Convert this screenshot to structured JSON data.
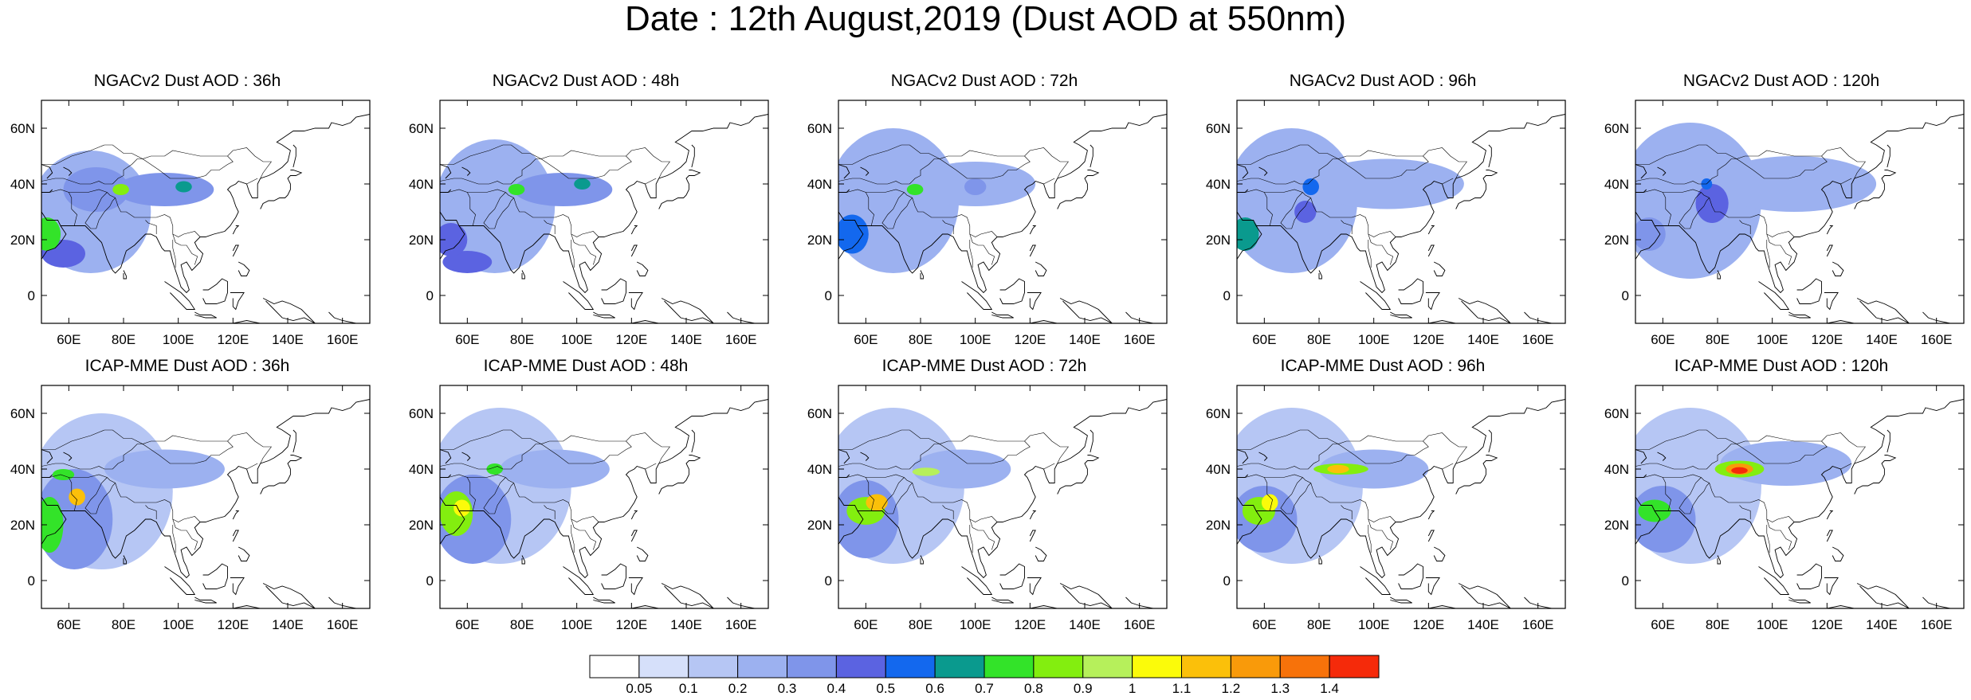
{
  "title": "Date : 12th August,2019 (Dust AOD at 550nm)",
  "lon_ticks": [
    "60E",
    "80E",
    "100E",
    "120E",
    "140E",
    "160E"
  ],
  "lat_ticks": [
    "60N",
    "40N",
    "20N",
    "0"
  ],
  "lon_tick_values": [
    60,
    80,
    100,
    120,
    140,
    160
  ],
  "lat_tick_values": [
    60,
    40,
    20,
    0
  ],
  "extent": {
    "lon": [
      50,
      170
    ],
    "lat": [
      -10,
      70
    ]
  },
  "panels": [
    {
      "title": "NGACv2 Dust AOD : 36h",
      "blobs": [
        {
          "lon": 68,
          "lat": 30,
          "rlon": 22,
          "rlat": 22,
          "aod": 0.2
        },
        {
          "lon": 95,
          "lat": 38,
          "rlon": 18,
          "rlat": 6,
          "aod": 0.3
        },
        {
          "lon": 70,
          "lat": 38,
          "rlon": 12,
          "rlat": 8,
          "aod": 0.35
        },
        {
          "lon": 79,
          "lat": 38,
          "rlon": 3,
          "rlat": 2,
          "aod": 0.8
        },
        {
          "lon": 102,
          "lat": 39,
          "rlon": 3,
          "rlat": 2,
          "aod": 0.6
        },
        {
          "lon": 52,
          "lat": 22,
          "rlon": 5,
          "rlat": 6,
          "aod": 0.75
        },
        {
          "lon": 58,
          "lat": 15,
          "rlon": 8,
          "rlat": 5,
          "aod": 0.45
        }
      ]
    },
    {
      "title": "NGACv2 Dust AOD : 48h",
      "blobs": [
        {
          "lon": 70,
          "lat": 32,
          "rlon": 22,
          "rlat": 24,
          "aod": 0.2
        },
        {
          "lon": 95,
          "lat": 38,
          "rlon": 18,
          "rlat": 6,
          "aod": 0.3
        },
        {
          "lon": 78,
          "lat": 38,
          "rlon": 3,
          "rlat": 2,
          "aod": 0.7
        },
        {
          "lon": 102,
          "lat": 40,
          "rlon": 3,
          "rlat": 2,
          "aod": 0.6
        },
        {
          "lon": 54,
          "lat": 20,
          "rlon": 6,
          "rlat": 6,
          "aod": 0.45
        },
        {
          "lon": 60,
          "lat": 12,
          "rlon": 9,
          "rlat": 4,
          "aod": 0.4
        }
      ]
    },
    {
      "title": "NGACv2 Dust AOD : 72h",
      "blobs": [
        {
          "lon": 70,
          "lat": 34,
          "rlon": 24,
          "rlat": 26,
          "aod": 0.2
        },
        {
          "lon": 100,
          "lat": 40,
          "rlon": 22,
          "rlat": 8,
          "aod": 0.25
        },
        {
          "lon": 78,
          "lat": 38,
          "rlon": 3,
          "rlat": 2,
          "aod": 0.7
        },
        {
          "lon": 55,
          "lat": 22,
          "rlon": 6,
          "rlat": 7,
          "aod": 0.5
        },
        {
          "lon": 100,
          "lat": 39,
          "rlon": 4,
          "rlat": 3,
          "aod": 0.35
        }
      ]
    },
    {
      "title": "NGACv2 Dust AOD : 96h",
      "blobs": [
        {
          "lon": 70,
          "lat": 34,
          "rlon": 24,
          "rlat": 26,
          "aod": 0.2
        },
        {
          "lon": 105,
          "lat": 40,
          "rlon": 28,
          "rlat": 9,
          "aod": 0.2
        },
        {
          "lon": 77,
          "lat": 39,
          "rlon": 3,
          "rlat": 3,
          "aod": 0.55
        },
        {
          "lon": 75,
          "lat": 30,
          "rlon": 4,
          "rlat": 4,
          "aod": 0.4
        },
        {
          "lon": 53,
          "lat": 22,
          "rlon": 5,
          "rlat": 6,
          "aod": 0.6
        }
      ]
    },
    {
      "title": "NGACv2 Dust AOD : 120h",
      "blobs": [
        {
          "lon": 70,
          "lat": 34,
          "rlon": 26,
          "rlat": 28,
          "aod": 0.2
        },
        {
          "lon": 108,
          "lat": 40,
          "rlon": 30,
          "rlat": 10,
          "aod": 0.2
        },
        {
          "lon": 78,
          "lat": 33,
          "rlon": 6,
          "rlat": 7,
          "aod": 0.4
        },
        {
          "lon": 76,
          "lat": 40,
          "rlon": 2,
          "rlat": 2,
          "aod": 0.5
        },
        {
          "lon": 55,
          "lat": 22,
          "rlon": 6,
          "rlat": 6,
          "aod": 0.35
        }
      ]
    },
    {
      "title": "ICAP-MME Dust AOD : 36h",
      "blobs": [
        {
          "lon": 72,
          "lat": 32,
          "rlon": 26,
          "rlat": 28,
          "aod": 0.15
        },
        {
          "lon": 95,
          "lat": 40,
          "rlon": 22,
          "rlat": 7,
          "aod": 0.25
        },
        {
          "lon": 62,
          "lat": 22,
          "rlon": 14,
          "rlat": 18,
          "aod": 0.35
        },
        {
          "lon": 53,
          "lat": 20,
          "rlon": 5,
          "rlat": 10,
          "aod": 0.7
        },
        {
          "lon": 63,
          "lat": 30,
          "rlon": 3,
          "rlat": 3,
          "aod": 1.1
        },
        {
          "lon": 58,
          "lat": 38,
          "rlon": 4,
          "rlat": 2,
          "aod": 0.75
        }
      ]
    },
    {
      "title": "ICAP-MME Dust AOD : 48h",
      "blobs": [
        {
          "lon": 72,
          "lat": 34,
          "rlon": 26,
          "rlat": 28,
          "aod": 0.15
        },
        {
          "lon": 92,
          "lat": 40,
          "rlon": 20,
          "rlat": 7,
          "aod": 0.25
        },
        {
          "lon": 62,
          "lat": 22,
          "rlon": 14,
          "rlat": 16,
          "aod": 0.35
        },
        {
          "lon": 56,
          "lat": 24,
          "rlon": 6,
          "rlat": 8,
          "aod": 0.8
        },
        {
          "lon": 58,
          "lat": 26,
          "rlon": 3,
          "rlat": 3,
          "aod": 1.05
        },
        {
          "lon": 70,
          "lat": 40,
          "rlon": 3,
          "rlat": 2,
          "aod": 0.7
        }
      ]
    },
    {
      "title": "ICAP-MME Dust AOD : 72h",
      "blobs": [
        {
          "lon": 70,
          "lat": 34,
          "rlon": 26,
          "rlat": 28,
          "aod": 0.15
        },
        {
          "lon": 95,
          "lat": 40,
          "rlon": 18,
          "rlat": 7,
          "aod": 0.25
        },
        {
          "lon": 60,
          "lat": 22,
          "rlon": 12,
          "rlat": 14,
          "aod": 0.35
        },
        {
          "lon": 60,
          "lat": 25,
          "rlon": 7,
          "rlat": 5,
          "aod": 0.8
        },
        {
          "lon": 64,
          "lat": 28,
          "rlon": 4,
          "rlat": 3,
          "aod": 1.1
        },
        {
          "lon": 82,
          "lat": 39,
          "rlon": 5,
          "rlat": 1.5,
          "aod": 0.9
        }
      ]
    },
    {
      "title": "ICAP-MME Dust AOD : 96h",
      "blobs": [
        {
          "lon": 70,
          "lat": 34,
          "rlon": 26,
          "rlat": 28,
          "aod": 0.15
        },
        {
          "lon": 100,
          "lat": 40,
          "rlon": 20,
          "rlat": 7,
          "aod": 0.25
        },
        {
          "lon": 60,
          "lat": 22,
          "rlon": 12,
          "rlat": 12,
          "aod": 0.35
        },
        {
          "lon": 58,
          "lat": 25,
          "rlon": 6,
          "rlat": 5,
          "aod": 0.8
        },
        {
          "lon": 62,
          "lat": 28,
          "rlon": 3,
          "rlat": 3,
          "aod": 1.05
        },
        {
          "lon": 88,
          "lat": 40,
          "rlon": 10,
          "rlat": 2,
          "aod": 0.85
        },
        {
          "lon": 87,
          "lat": 40,
          "rlon": 4,
          "rlat": 1.5,
          "aod": 1.1
        }
      ]
    },
    {
      "title": "ICAP-MME Dust AOD : 120h",
      "blobs": [
        {
          "lon": 70,
          "lat": 34,
          "rlon": 26,
          "rlat": 28,
          "aod": 0.15
        },
        {
          "lon": 105,
          "lat": 42,
          "rlon": 24,
          "rlat": 8,
          "aod": 0.25
        },
        {
          "lon": 60,
          "lat": 22,
          "rlon": 12,
          "rlat": 12,
          "aod": 0.35
        },
        {
          "lon": 57,
          "lat": 25,
          "rlon": 6,
          "rlat": 4,
          "aod": 0.75
        },
        {
          "lon": 88,
          "lat": 40,
          "rlon": 9,
          "rlat": 3,
          "aod": 0.85
        },
        {
          "lon": 88,
          "lat": 40,
          "rlon": 5,
          "rlat": 2,
          "aod": 1.25
        },
        {
          "lon": 88,
          "lat": 39.5,
          "rlon": 3,
          "rlat": 1.2,
          "aod": 1.45
        }
      ]
    }
  ],
  "colorbar": {
    "labels": [
      "0.05",
      "0.1",
      "0.2",
      "0.3",
      "0.4",
      "0.5",
      "0.6",
      "0.7",
      "0.8",
      "0.9",
      "1",
      "1.1",
      "1.2",
      "1.3",
      "1.4"
    ],
    "colors": [
      "#ffffff",
      "#d6e0fa",
      "#b6c6f4",
      "#9cb1f0",
      "#7f95ea",
      "#5b63e1",
      "#1368ee",
      "#0a9a8e",
      "#33e329",
      "#83ee0f",
      "#b6f05b",
      "#fbfb0a",
      "#fbc00a",
      "#f99a0a",
      "#f7720a",
      "#f52a0a"
    ]
  }
}
